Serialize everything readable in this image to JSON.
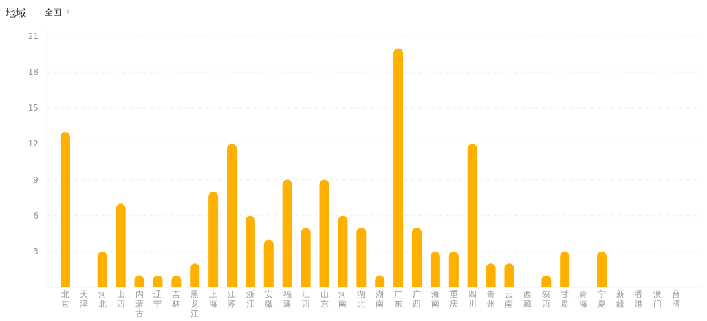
{
  "chart_data": {
    "type": "bar",
    "title": "地域",
    "subtitle": "全国",
    "categories": [
      "北京",
      "天津",
      "河北",
      "山西",
      "内蒙古",
      "辽宁",
      "吉林",
      "黑龙江",
      "上海",
      "江苏",
      "浙江",
      "安徽",
      "福建",
      "江西",
      "山东",
      "河南",
      "湖北",
      "湖南",
      "广东",
      "广西",
      "海南",
      "重庆",
      "四川",
      "贵州",
      "云南",
      "西藏",
      "陕西",
      "甘肃",
      "青海",
      "宁夏",
      "新疆",
      "香港",
      "澳门",
      "台湾"
    ],
    "values": [
      13,
      0,
      3,
      7,
      1,
      1,
      1,
      2,
      8,
      12,
      6,
      4,
      9,
      5,
      9,
      6,
      5,
      1,
      20,
      5,
      3,
      3,
      12,
      2,
      2,
      0,
      1,
      3,
      0,
      3,
      0,
      0,
      0,
      0
    ],
    "color": "#ffb000",
    "ylim": [
      0,
      21
    ],
    "yticks": [
      3,
      6,
      9,
      12,
      15,
      18,
      21
    ],
    "grid": "y"
  }
}
